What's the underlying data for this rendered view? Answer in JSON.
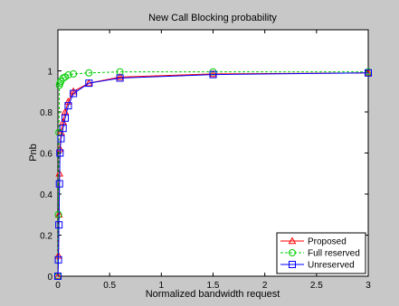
{
  "chart_data": {
    "type": "line",
    "title": "New Call Blocking probability",
    "xlabel": "Normalized bandwidth request",
    "ylabel": "Pnb",
    "xlim": [
      0,
      3
    ],
    "ylim": [
      0,
      1.2
    ],
    "xticks": [
      0,
      0.5,
      1,
      1.5,
      2,
      2.5,
      3
    ],
    "xtick_labels": [
      "0",
      "0.5",
      "1",
      "1.5",
      "2",
      "2.5",
      "3"
    ],
    "yticks": [
      0,
      0.2,
      0.4,
      0.6,
      0.8,
      1
    ],
    "ytick_labels": [
      "0",
      "0.2",
      "0.4",
      "0.6",
      "0.8",
      "1"
    ],
    "grid": false,
    "legend_position": "bottom-right",
    "series": [
      {
        "name": "Proposed",
        "color": "#ff0000",
        "line_style": "solid",
        "marker": "triangle",
        "x": [
          0,
          0.005,
          0.01,
          0.015,
          0.02,
          0.03,
          0.05,
          0.07,
          0.1,
          0.15,
          0.3,
          0.6,
          1.5,
          3
        ],
        "y": [
          0,
          0.1,
          0.3,
          0.5,
          0.62,
          0.7,
          0.75,
          0.8,
          0.85,
          0.9,
          0.94,
          0.97,
          0.985,
          0.99
        ]
      },
      {
        "name": "Full reserved",
        "color": "#00cc00",
        "line_style": "dashed",
        "marker": "circle",
        "x": [
          0,
          0.005,
          0.01,
          0.015,
          0.02,
          0.03,
          0.05,
          0.07,
          0.1,
          0.15,
          0.3,
          0.6,
          1.5,
          3
        ],
        "y": [
          0,
          0.3,
          0.7,
          0.93,
          0.94,
          0.95,
          0.965,
          0.97,
          0.98,
          0.985,
          0.99,
          0.995,
          0.995,
          0.995
        ]
      },
      {
        "name": "Unreserved",
        "color": "#0000ff",
        "line_style": "solid",
        "marker": "square",
        "x": [
          0,
          0.005,
          0.01,
          0.015,
          0.02,
          0.03,
          0.05,
          0.07,
          0.1,
          0.15,
          0.3,
          0.6,
          1.5,
          3
        ],
        "y": [
          0,
          0.08,
          0.25,
          0.45,
          0.6,
          0.67,
          0.72,
          0.77,
          0.83,
          0.89,
          0.94,
          0.965,
          0.982,
          0.99
        ]
      }
    ]
  }
}
